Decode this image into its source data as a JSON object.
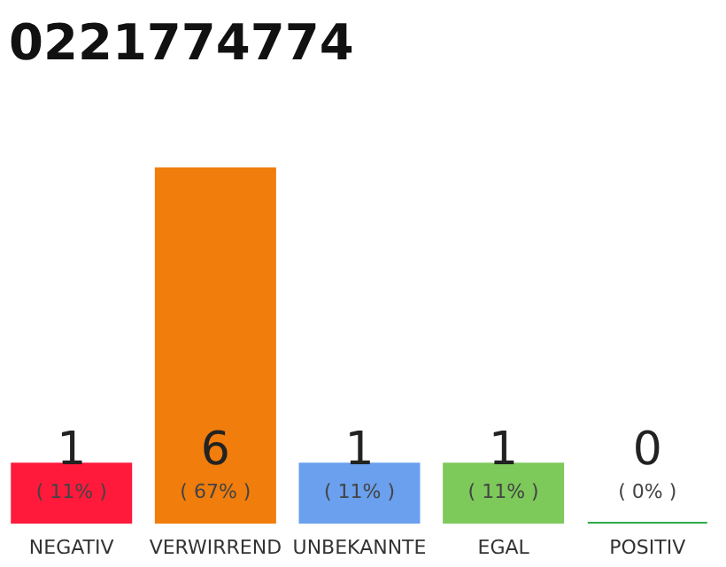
{
  "chart_data": {
    "type": "bar",
    "title": "0221774774",
    "categories": [
      "NEGATIV",
      "VERWIRREND",
      "UNBEKANNTE",
      "EGAL",
      "POSITIV"
    ],
    "values": [
      1,
      6,
      1,
      1,
      0
    ],
    "annotations": [
      "( 11% )",
      "( 67% )",
      "( 11% )",
      "( 11% )",
      "( 0% )"
    ],
    "colors": [
      "#ff1a3c",
      "#f07d0c",
      "#6aa0ee",
      "#7dc95a",
      "#2eaa4a"
    ],
    "ylim": [
      0,
      6
    ],
    "tick_labels": "x",
    "grid": false,
    "data_labels": true
  }
}
